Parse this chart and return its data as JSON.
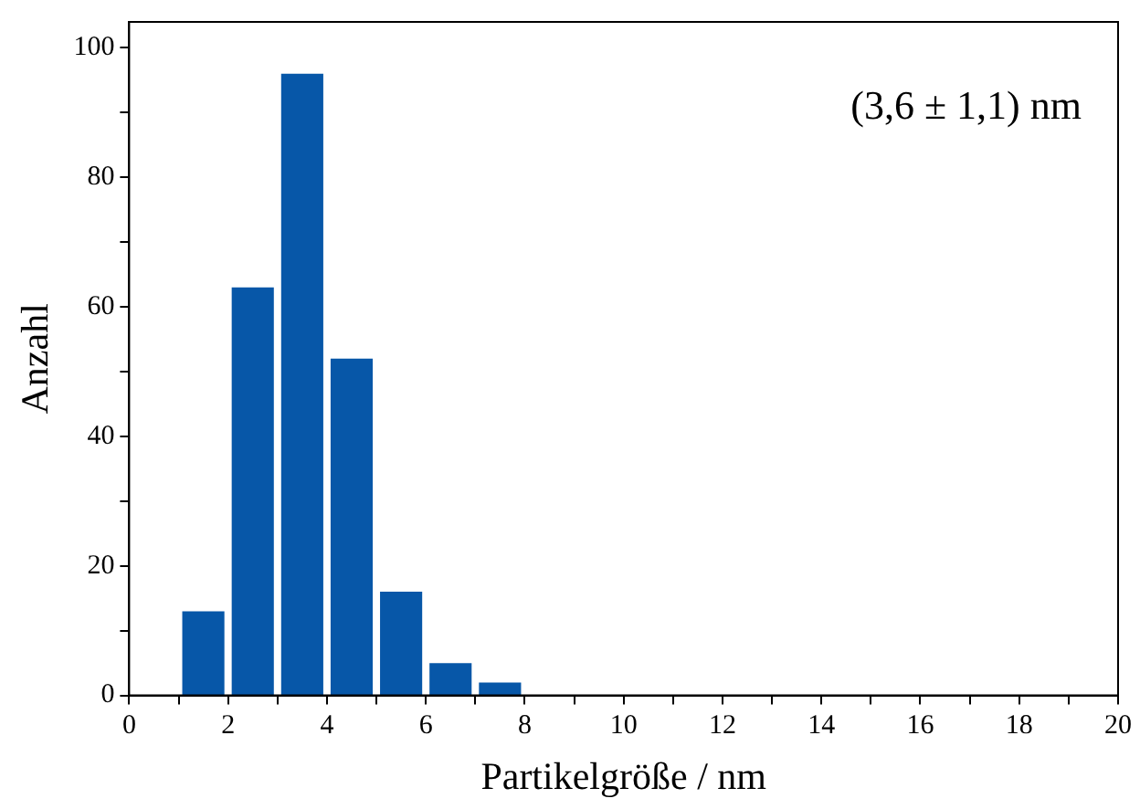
{
  "chart_data": {
    "type": "histogram",
    "xlabel": "Partikelgröße / nm",
    "ylabel": "Anzahl",
    "bins": [
      1,
      2,
      3,
      4,
      5,
      6,
      7,
      8
    ],
    "values": [
      13,
      63,
      96,
      52,
      16,
      5,
      2
    ],
    "color": "#0757a8",
    "xlim": [
      0,
      20
    ],
    "xticks": [
      0,
      {
        "value": 1,
        "label": null
      },
      2,
      {
        "value": 3,
        "label": null
      },
      4,
      {
        "value": 5,
        "label": null
      },
      6,
      {
        "value": 7,
        "label": null
      },
      8,
      {
        "value": 9,
        "label": null
      },
      10,
      {
        "value": 11,
        "label": null
      },
      12,
      {
        "value": 13,
        "label": null
      },
      14,
      {
        "value": 15,
        "label": null
      },
      16,
      {
        "value": 17,
        "label": null
      },
      18,
      {
        "value": 19,
        "label": null
      },
      20
    ],
    "ylim": [
      0,
      104
    ],
    "yticks": [
      0,
      {
        "value": 10,
        "label": null
      },
      20,
      {
        "value": 30,
        "label": null
      },
      40,
      {
        "value": 50,
        "label": null
      },
      60,
      {
        "value": 70,
        "label": null
      },
      80,
      {
        "value": 90,
        "label": null
      },
      100
    ],
    "annotations": [
      "(3,6 ± 1,1) nm"
    ],
    "grid": false,
    "legend": false
  }
}
